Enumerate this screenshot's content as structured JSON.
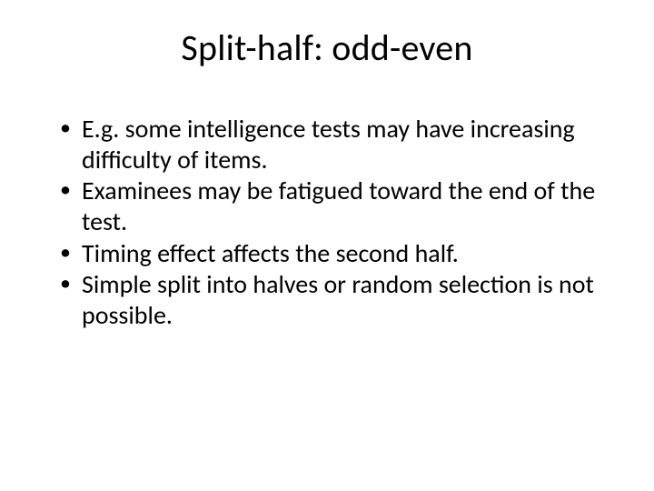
{
  "slide": {
    "title": "Split-half: odd-even",
    "bullets": [
      "E.g. some intelligence tests may have increasing difficulty of items.",
      " Examinees may be fatigued toward the end of the test.",
      "Timing effect affects the second half.",
      "Simple split into halves or random selection is not possible."
    ],
    "colors": {
      "background": "#ffffff",
      "text": "#000000"
    },
    "title_fontsize": 40,
    "body_fontsize": 28
  }
}
